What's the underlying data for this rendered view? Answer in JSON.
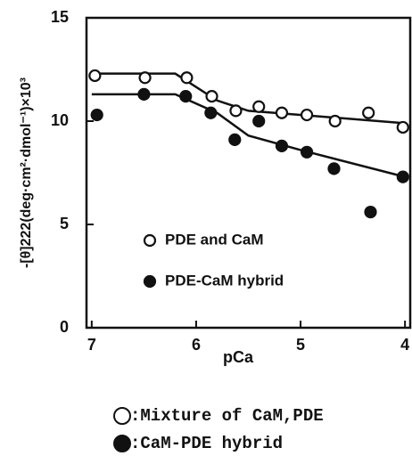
{
  "chart_data": {
    "type": "scatter",
    "xlabel": "pCa",
    "ylabel": "-[θ]222(deg·cm²·dmol⁻¹)×10³",
    "xlim": [
      7.05,
      3.95
    ],
    "xticks": [
      7,
      6,
      5,
      4
    ],
    "ylim": [
      0,
      15
    ],
    "yticks": [
      0,
      5,
      10,
      15
    ],
    "series": [
      {
        "name": "PDE and CaM",
        "marker": "open",
        "color": "#111111",
        "x": [
          6.97,
          6.49,
          6.09,
          5.85,
          5.62,
          5.4,
          5.18,
          4.94,
          4.67,
          4.35,
          4.02
        ],
        "values": [
          12.2,
          12.1,
          12.1,
          11.2,
          10.5,
          10.7,
          10.4,
          10.3,
          10.0,
          10.4,
          9.7
        ],
        "fit": {
          "x": [
            7,
            6.2,
            5.8,
            5.5,
            4
          ],
          "values": [
            12.3,
            12.3,
            11.0,
            10.5,
            9.9
          ]
        }
      },
      {
        "name": "PDE-CaM hybrid",
        "marker": "filled",
        "color": "#111111",
        "x": [
          6.95,
          6.5,
          6.1,
          5.86,
          5.63,
          5.4,
          5.18,
          4.94,
          4.68,
          4.33,
          4.02
        ],
        "values": [
          10.3,
          11.3,
          11.2,
          10.4,
          9.1,
          10.0,
          8.8,
          8.5,
          7.7,
          5.6,
          7.3
        ],
        "fit": {
          "x": [
            7,
            6.2,
            5.8,
            5.5,
            5.0,
            4
          ],
          "values": [
            11.3,
            11.3,
            10.4,
            9.3,
            8.6,
            7.3
          ]
        }
      }
    ],
    "captions": [
      ":Mixture of CaM,PDE",
      ":CaM-PDE hybrid"
    ]
  }
}
